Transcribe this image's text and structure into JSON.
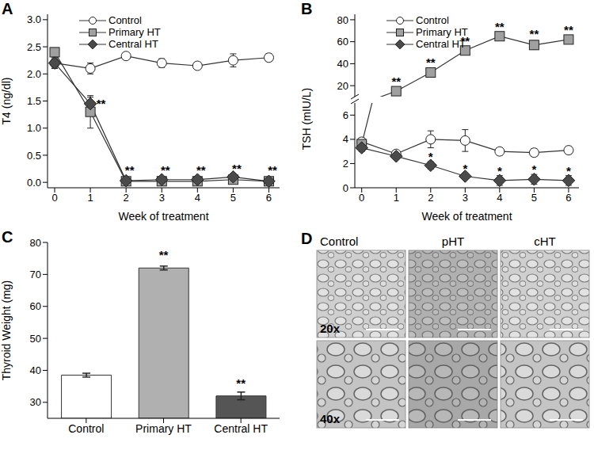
{
  "chart_data": [
    {
      "type": "line",
      "title": "A",
      "x_label": "Week of treatment",
      "y_label": "T4 (ng/dl)",
      "x": [
        0,
        1,
        2,
        3,
        4,
        5,
        6
      ],
      "xlim": [
        -0.2,
        6.3
      ],
      "xticks": [
        0,
        1,
        2,
        3,
        4,
        5,
        6
      ],
      "ylim": [
        -0.1,
        3.1
      ],
      "yticks": [
        {
          "value": 0,
          "label": "0.0"
        },
        {
          "value": 0.5,
          "label": "0.5"
        },
        {
          "value": 1,
          "label": "1.0"
        },
        {
          "value": 1.5,
          "label": "1.5"
        },
        {
          "value": 2,
          "label": "2.0"
        },
        {
          "value": 2.5,
          "label": "2.5"
        },
        {
          "value": 3,
          "label": "3.0"
        }
      ],
      "legend": "upper left",
      "series": [
        {
          "name": "Control",
          "color": "#ffffff",
          "marker": "circle",
          "values": [
            2.2,
            2.1,
            2.33,
            2.2,
            2.15,
            2.25,
            2.3
          ],
          "errors": [
            0.08,
            0.1,
            0.06,
            0.08,
            0.06,
            0.12,
            0.07
          ]
        },
        {
          "name": "Primary HT",
          "color": "#a0a0a0",
          "marker": "square",
          "values": [
            2.4,
            1.3,
            0.02,
            0.02,
            0.02,
            0.05,
            0.02
          ],
          "errors": [
            0.08,
            0.3,
            0.02,
            0.02,
            0.02,
            0.04,
            0.02
          ]
        },
        {
          "name": "Central HT",
          "color": "#4a4a4a",
          "marker": "diamond",
          "values": [
            2.2,
            1.45,
            0.03,
            0.05,
            0.05,
            0.1,
            0.02
          ],
          "errors": [
            0.1,
            0.12,
            0.02,
            0.03,
            0.03,
            0.06,
            0.02
          ]
        }
      ],
      "annotations": [
        {
          "x": 1.3,
          "y": 1.45,
          "text": "**"
        },
        {
          "x": 2.1,
          "y": 0.22,
          "text": "**"
        },
        {
          "x": 3.1,
          "y": 0.22,
          "text": "**"
        },
        {
          "x": 4.1,
          "y": 0.22,
          "text": "**"
        },
        {
          "x": 5.1,
          "y": 0.25,
          "text": "**"
        },
        {
          "x": 6.1,
          "y": 0.22,
          "text": "**"
        }
      ]
    },
    {
      "type": "line",
      "title": "B",
      "x_label": "Week of treatment",
      "y_label": "TSH (mIU/L)",
      "x": [
        0,
        1,
        2,
        3,
        4,
        5,
        6
      ],
      "xlim": [
        -0.2,
        6.3
      ],
      "xticks": [
        0,
        1,
        2,
        3,
        4,
        5,
        6
      ],
      "y_segments": [
        {
          "ylim": [
            0,
            7
          ],
          "yticks": [
            0,
            2,
            4,
            6
          ]
        },
        {
          "ylim": [
            10,
            85
          ],
          "yticks": [
            20,
            40,
            60,
            80
          ]
        }
      ],
      "legend": "upper left",
      "series": [
        {
          "name": "Control",
          "color": "#ffffff",
          "marker": "circle",
          "values": [
            3.8,
            2.8,
            4.0,
            3.9,
            3.0,
            2.9,
            3.1
          ],
          "errors": [
            0.3,
            0.2,
            0.7,
            0.9,
            0.3,
            0.3,
            0.3
          ]
        },
        {
          "name": "Primary HT",
          "color": "#a0a0a0",
          "marker": "square",
          "values": [
            3.6,
            15,
            32,
            52,
            65,
            57,
            62
          ],
          "errors": [
            0.3,
            2,
            3,
            3,
            3,
            4,
            3
          ]
        },
        {
          "name": "Central HT",
          "color": "#4a4a4a",
          "marker": "diamond",
          "values": [
            3.3,
            2.6,
            1.85,
            0.95,
            0.6,
            0.7,
            0.6
          ],
          "errors": [
            0.3,
            0.2,
            0.3,
            0.2,
            0.4,
            0.4,
            0.4
          ]
        }
      ],
      "annotations": [
        {
          "x": 1,
          "y": 24,
          "text": "**"
        },
        {
          "x": 2,
          "y": 41,
          "text": "**"
        },
        {
          "x": 3,
          "y": 61,
          "text": "**"
        },
        {
          "x": 4,
          "y": 74,
          "text": "**"
        },
        {
          "x": 5,
          "y": 67,
          "text": "**"
        },
        {
          "x": 6,
          "y": 71,
          "text": "**"
        },
        {
          "x": 2,
          "y": 2.6,
          "text": "*"
        },
        {
          "x": 3,
          "y": 1.6,
          "text": "*"
        },
        {
          "x": 4,
          "y": 1.4,
          "text": "*"
        },
        {
          "x": 5,
          "y": 1.5,
          "text": "*"
        },
        {
          "x": 6,
          "y": 1.4,
          "text": "*"
        }
      ]
    },
    {
      "type": "bar",
      "title": "C",
      "y_label": "Thyroid Weight (mg)",
      "categories": [
        "Control",
        "Primary HT",
        "Central HT"
      ],
      "values": [
        38.5,
        72,
        32
      ],
      "errors": [
        0.6,
        0.6,
        1.2
      ],
      "colors": [
        "#ffffff",
        "#b0b0b0",
        "#555555"
      ],
      "ylim": [
        25,
        80
      ],
      "yticks": [
        30,
        40,
        50,
        60,
        70,
        80
      ],
      "annotations": [
        {
          "x": "Primary HT",
          "y": 76,
          "text": "**"
        },
        {
          "x": "Central HT",
          "y": 36,
          "text": "**"
        }
      ]
    },
    {
      "type": "image_grid",
      "title": "D",
      "columns": [
        "Control",
        "pHT",
        "cHT"
      ],
      "rows": [
        "20x",
        "40x"
      ]
    }
  ]
}
